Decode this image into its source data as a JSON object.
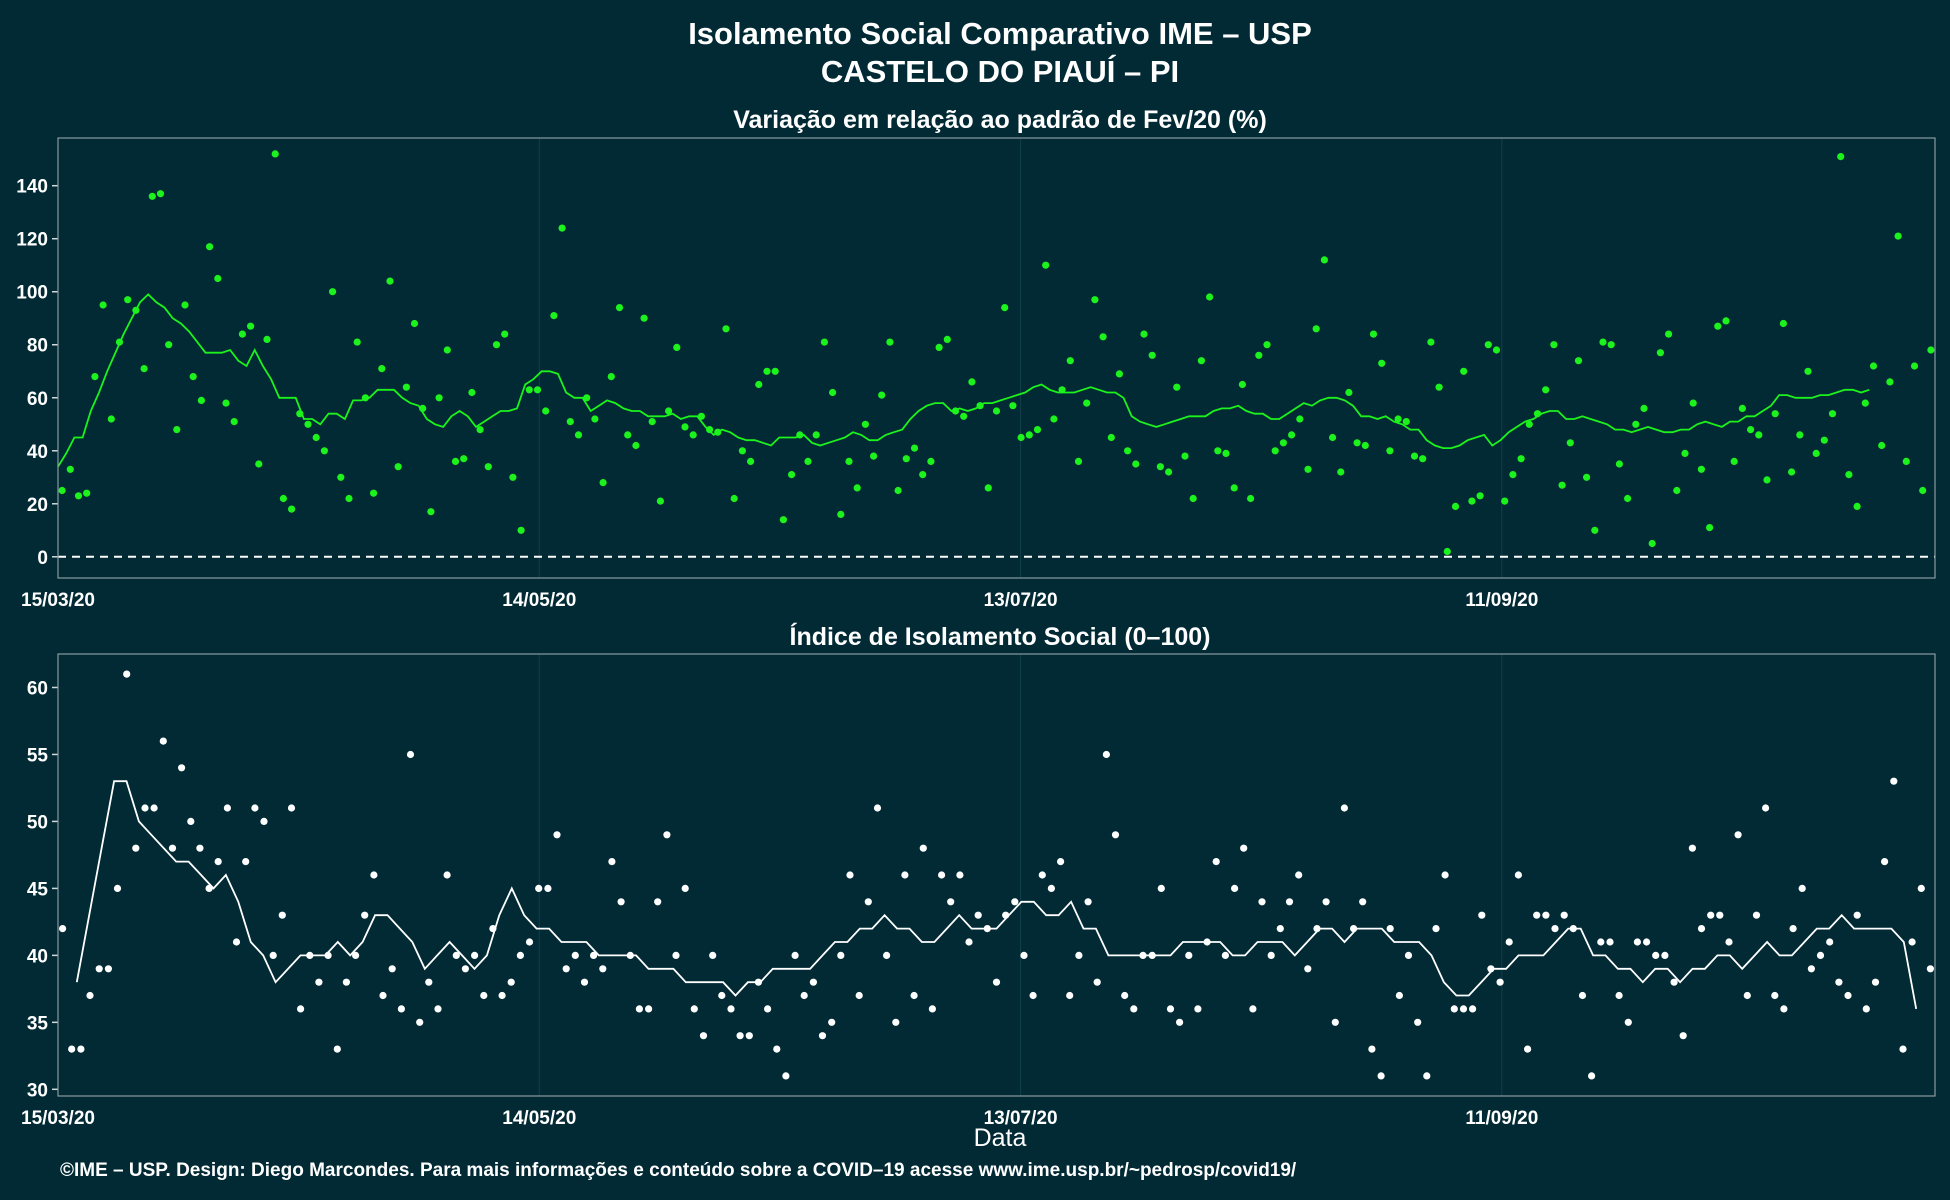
{
  "page": {
    "title_line1": "Isolamento Social Comparativo IME – USP",
    "title_line2": "CASTELO DO PIAUÍ – PI",
    "footer": "©IME – USP. Design: Diego Marcondes. Para mais informações e conteúdo sobre a COVID–19 acesse www.ime.usp.br/~pedrosp/covid19/",
    "xlabel": "Data"
  },
  "colors": {
    "background": "#012a35",
    "variation": "#1cf21c",
    "index": "#ffffff",
    "grid": "#123f4a",
    "border": "#8a9aa0"
  },
  "chart_data": [
    {
      "type": "scatter",
      "title": "Variação em relação ao padrão de Fev/20 (%)",
      "x_start": "2020-03-15",
      "x_end": "2020-11-04",
      "xticks": [
        "15/03/20",
        "14/05/20",
        "13/07/20",
        "11/09/20"
      ],
      "ylim": [
        -8,
        158
      ],
      "yticks": [
        0,
        20,
        40,
        60,
        80,
        100,
        120,
        140
      ],
      "reference_line": 0,
      "grid": true,
      "series": [
        {
          "kind": "points",
          "values": [
            25,
            33,
            23,
            24,
            68,
            95,
            52,
            81,
            97,
            93,
            71,
            136,
            137,
            80,
            48,
            95,
            68,
            59,
            117,
            105,
            58,
            51,
            84,
            87,
            35,
            82,
            152,
            22,
            18,
            54,
            50,
            45,
            40,
            100,
            30,
            22,
            81,
            60,
            24,
            71,
            104,
            34,
            64,
            88,
            56,
            17,
            60,
            78,
            36,
            37,
            62,
            48,
            34,
            80,
            84,
            30,
            10,
            63,
            63,
            55,
            91,
            124,
            51,
            46,
            60,
            52,
            28,
            68,
            94,
            46,
            42,
            90,
            51,
            21,
            55,
            79,
            49,
            46,
            53,
            48,
            47,
            86,
            22,
            40,
            36,
            65,
            70,
            70,
            14,
            31,
            46,
            36,
            46,
            81,
            62,
            16,
            36,
            26,
            50,
            38,
            61,
            81,
            25,
            37,
            41,
            31,
            36,
            79,
            82,
            55,
            53,
            66,
            57,
            26,
            55,
            94,
            57,
            45,
            46,
            48,
            110,
            52,
            63,
            74,
            36,
            58,
            97,
            83,
            45,
            69,
            40,
            35,
            84,
            76,
            34,
            32,
            64,
            38,
            22,
            74,
            98,
            40,
            39,
            26,
            65,
            22,
            76,
            80,
            40,
            43,
            46,
            52,
            33,
            86,
            112,
            45,
            32,
            62,
            43,
            42,
            84,
            73,
            40,
            52,
            51,
            38,
            37,
            81,
            64,
            2,
            19,
            70,
            21,
            23,
            80,
            78,
            21,
            31,
            37,
            50,
            54,
            63,
            80,
            27,
            43,
            74,
            30,
            10,
            81,
            80,
            35,
            22,
            50,
            56,
            5,
            77,
            84,
            25,
            39,
            58,
            33,
            11,
            87,
            89,
            36,
            56,
            48,
            46,
            29,
            54,
            88,
            32,
            46,
            70,
            39,
            44,
            54,
            151,
            31,
            19,
            58,
            72,
            42,
            66,
            121,
            36,
            72,
            25,
            78
          ]
        },
        {
          "kind": "moving-average",
          "values": [
            34,
            39,
            45,
            45,
            55,
            62,
            70,
            77,
            84,
            90,
            96,
            99,
            96,
            94,
            90,
            88,
            85,
            81,
            77,
            77,
            77,
            78,
            74,
            72,
            78,
            72,
            67,
            60,
            60,
            60,
            52,
            52,
            50,
            54,
            54,
            52,
            59,
            59,
            60,
            63,
            63,
            63,
            60,
            58,
            57,
            52,
            50,
            49,
            53,
            55,
            53,
            49,
            51,
            53,
            55,
            55,
            56,
            65,
            67,
            70,
            70,
            69,
            62,
            60,
            60,
            55,
            57,
            59,
            58,
            56,
            55,
            55,
            53,
            53,
            53,
            54,
            52,
            53,
            53,
            49,
            46,
            48,
            47,
            45,
            44,
            44,
            43,
            42,
            45,
            45,
            45,
            46,
            43,
            42,
            43,
            44,
            45,
            47,
            46,
            44,
            44,
            46,
            47,
            48,
            52,
            55,
            57,
            58,
            58,
            55,
            56,
            55,
            56,
            58,
            58,
            59,
            60,
            61,
            62,
            64,
            65,
            63,
            62,
            62,
            62,
            63,
            64,
            63,
            62,
            62,
            60,
            53,
            51,
            50,
            49,
            50,
            51,
            52,
            53,
            53,
            53,
            55,
            56,
            56,
            57,
            55,
            54,
            54,
            52,
            52,
            54,
            56,
            58,
            57,
            59,
            60,
            60,
            59,
            57,
            53,
            53,
            52,
            53,
            51,
            50,
            48,
            48,
            44,
            42,
            41,
            41,
            42,
            44,
            45,
            46,
            42,
            44,
            47,
            49,
            51,
            52,
            54,
            55,
            55,
            52,
            52,
            53,
            52,
            51,
            50,
            48,
            48,
            47,
            48,
            49,
            48,
            47,
            47,
            48,
            48,
            50,
            51,
            50,
            49,
            51,
            51,
            53,
            53,
            55,
            57,
            61,
            61,
            60,
            60,
            60,
            61,
            61,
            62,
            63,
            63,
            62,
            63
          ]
        }
      ]
    },
    {
      "type": "scatter",
      "title": "Índice de Isolamento Social (0–100)",
      "xlabel": "Data",
      "x_start": "2020-03-15",
      "x_end": "2020-11-04",
      "xticks": [
        "15/03/20",
        "14/05/20",
        "13/07/20",
        "11/09/20"
      ],
      "ylim": [
        29.5,
        62.5
      ],
      "yticks": [
        30,
        35,
        40,
        45,
        50,
        55,
        60
      ],
      "grid": true,
      "series": [
        {
          "kind": "points",
          "values": [
            42,
            33,
            33,
            37,
            39,
            39,
            45,
            61,
            48,
            51,
            51,
            56,
            48,
            54,
            50,
            48,
            45,
            47,
            51,
            41,
            47,
            51,
            50,
            40,
            43,
            51,
            36,
            40,
            38,
            40,
            33,
            38,
            40,
            43,
            46,
            37,
            39,
            36,
            55,
            35,
            38,
            36,
            46,
            40,
            39,
            40,
            37,
            42,
            37,
            38,
            40,
            41,
            45,
            45,
            49,
            39,
            40,
            38,
            40,
            39,
            47,
            44,
            40,
            36,
            36,
            44,
            49,
            40,
            45,
            36,
            34,
            40,
            37,
            36,
            34,
            34,
            38,
            36,
            33,
            31,
            40,
            37,
            38,
            34,
            35,
            40,
            46,
            37,
            44,
            51,
            40,
            35,
            46,
            37,
            48,
            36,
            46,
            44,
            46,
            41,
            43,
            42,
            38,
            43,
            44,
            40,
            37,
            46,
            45,
            47,
            37,
            40,
            44,
            38,
            55,
            49,
            37,
            36,
            40,
            40,
            45,
            36,
            35,
            40,
            36,
            41,
            47,
            40,
            45,
            48,
            36,
            44,
            40,
            42,
            44,
            46,
            39,
            42,
            44,
            35,
            51,
            42,
            44,
            33,
            31,
            42,
            37,
            40,
            35,
            31,
            42,
            46,
            36,
            36,
            36,
            43,
            39,
            38,
            41,
            46,
            33,
            43,
            43,
            42,
            43,
            42,
            37,
            31,
            41,
            41,
            37,
            35,
            41,
            41,
            40,
            40,
            38,
            34,
            48,
            42,
            43,
            43,
            41,
            49,
            37,
            43,
            51,
            37,
            36,
            42,
            45,
            39,
            40,
            41,
            38,
            37,
            43,
            36,
            38,
            47,
            53,
            33,
            41,
            45,
            39
          ]
        },
        {
          "kind": "moving-average",
          "values": [
            38,
            43,
            48,
            53,
            53,
            50,
            49,
            48,
            47,
            47,
            46,
            45,
            46,
            44,
            41,
            40,
            38,
            39,
            40,
            40,
            40,
            41,
            40,
            41,
            43,
            43,
            42,
            41,
            39,
            40,
            41,
            40,
            39,
            40,
            43,
            45,
            43,
            42,
            42,
            41,
            41,
            41,
            40,
            40,
            40,
            40,
            39,
            39,
            39,
            38,
            38,
            38,
            38,
            37,
            38,
            38,
            39,
            39,
            39,
            39,
            40,
            41,
            41,
            42,
            42,
            43,
            42,
            42,
            41,
            41,
            42,
            43,
            42,
            42,
            42,
            43,
            44,
            44,
            43,
            43,
            44,
            42,
            42,
            40,
            40,
            40,
            40,
            40,
            40,
            41,
            41,
            41,
            41,
            40,
            40,
            41,
            41,
            41,
            40,
            41,
            42,
            42,
            41,
            42,
            42,
            42,
            41,
            41,
            41,
            40,
            38,
            37,
            37,
            38,
            39,
            39,
            40,
            40,
            40,
            41,
            42,
            42,
            40,
            40,
            39,
            39,
            38,
            39,
            39,
            38,
            39,
            39,
            40,
            40,
            39,
            40,
            41,
            40,
            40,
            41,
            42,
            42,
            43,
            42,
            42,
            42,
            42,
            41,
            36
          ]
        }
      ]
    }
  ]
}
